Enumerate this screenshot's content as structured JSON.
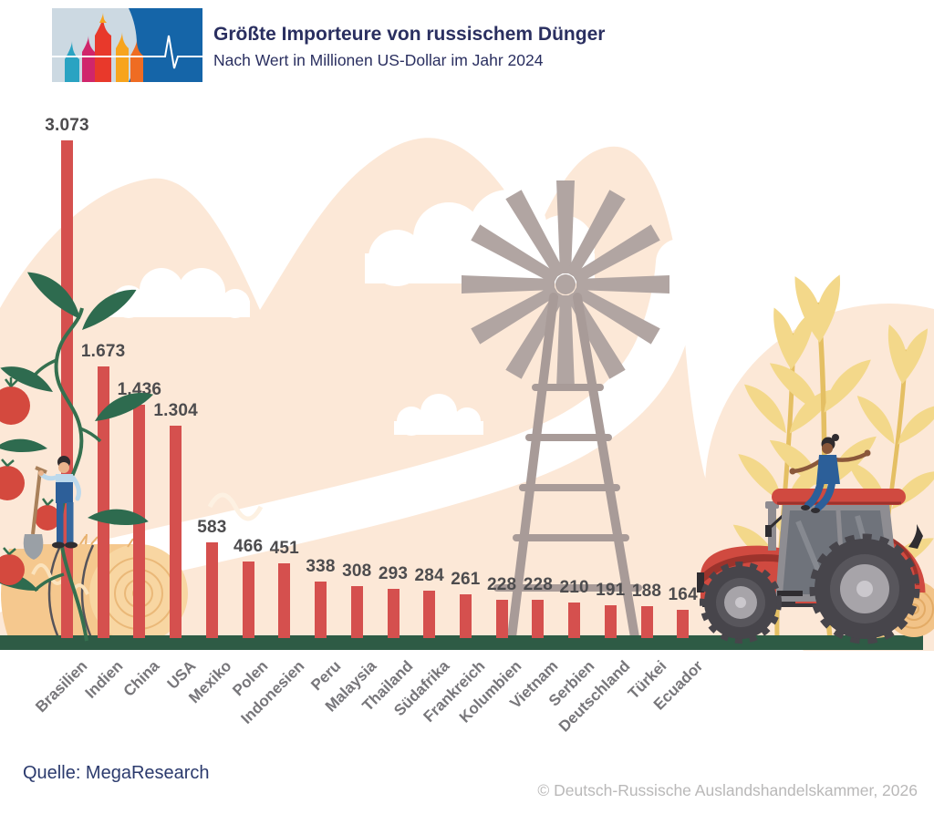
{
  "header": {
    "title": "Größte Importeure von russischem Dünger",
    "subtitle": "Nach Wert in Millionen US-Dollar im Jahr 2024",
    "logo": "russia-cathedral-pulse-logo"
  },
  "chart_data": {
    "type": "bar",
    "title": "Größte Importeure von russischem Dünger",
    "subtitle": "Nach Wert in Millionen US-Dollar im Jahr 2024",
    "unit": "Millionen US-Dollar",
    "categories": [
      "Brasilien",
      "Indien",
      "China",
      "USA",
      "Mexiko",
      "Polen",
      "Indonesien",
      "Peru",
      "Malaysia",
      "Thailand",
      "Südafrika",
      "Frankreich",
      "Kolumbien",
      "Vietnam",
      "Serbien",
      "Deutschland",
      "Türkei",
      "Ecuador"
    ],
    "values": [
      3073,
      1673,
      1436,
      1304,
      583,
      466,
      451,
      338,
      308,
      293,
      284,
      261,
      228,
      228,
      210,
      191,
      188,
      164
    ],
    "value_labels": [
      "3.073",
      "1.673",
      "1.436",
      "1.304",
      "583",
      "466",
      "451",
      "338",
      "308",
      "293",
      "284",
      "261",
      "228",
      "228",
      "210",
      "191",
      "188",
      "164"
    ],
    "ylim": [
      0,
      3073
    ],
    "grid": false,
    "legend": "none",
    "bar_color": "#d5504e",
    "value_label_color": "#4d4c4e",
    "axis_label_color": "#77767a",
    "ground_color": "#2e5b45"
  },
  "footer": {
    "source": "Quelle: MegaResearch",
    "copyright": "© Deutsch-Russische Auslandshandelskammer, 2026"
  },
  "decor": {
    "scene": [
      "tomato-plant",
      "farmer-with-shovel",
      "hay-bale",
      "windmill",
      "clouds",
      "wheat",
      "tractor",
      "woman-on-tractor"
    ],
    "accent_peach": "#fce8d7",
    "accent_navy": "#2a2f60"
  }
}
